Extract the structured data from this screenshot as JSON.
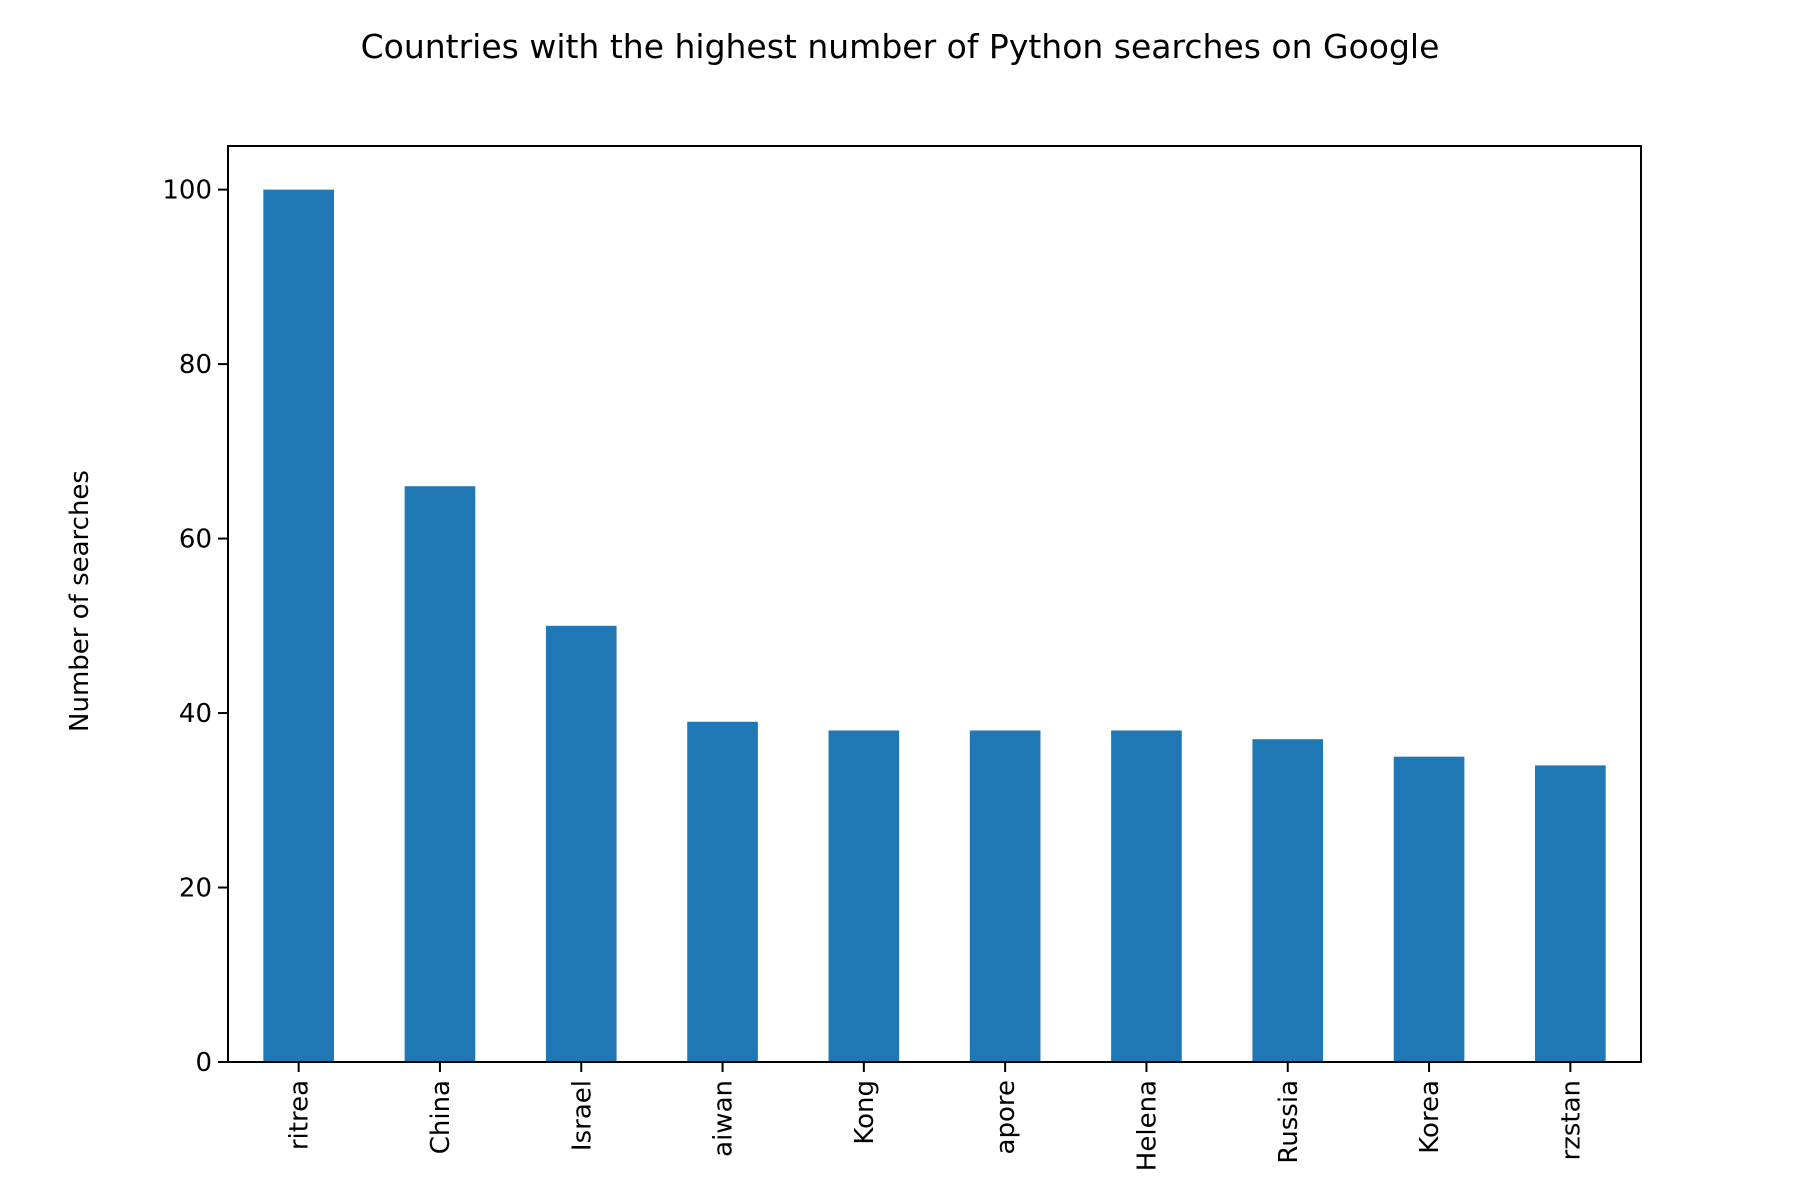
{
  "chart_data": {
    "type": "bar",
    "title": "Countries with the highest number of Python searches on Google",
    "xlabel": "",
    "ylabel": "Number of searches",
    "categories": [
      "Eritrea",
      "China",
      "Israel",
      "Taiwan",
      "Hong Kong",
      "Singapore",
      "St. Helena",
      "Russia",
      "South Korea",
      "Kyrgyzstan"
    ],
    "visible_tick_text": [
      "ritrea",
      "China",
      "Israel",
      "aiwan",
      "Kong",
      "apore",
      "Helena",
      "Russia",
      "Korea",
      "rzstan"
    ],
    "values": [
      100,
      66,
      50,
      39,
      38,
      38,
      38,
      37,
      35,
      34
    ],
    "ylim": [
      0,
      105
    ],
    "yticks": [
      0,
      20,
      40,
      60,
      80,
      100
    ],
    "bar_color": "#1f77b4",
    "grid": false,
    "legend": "none"
  }
}
